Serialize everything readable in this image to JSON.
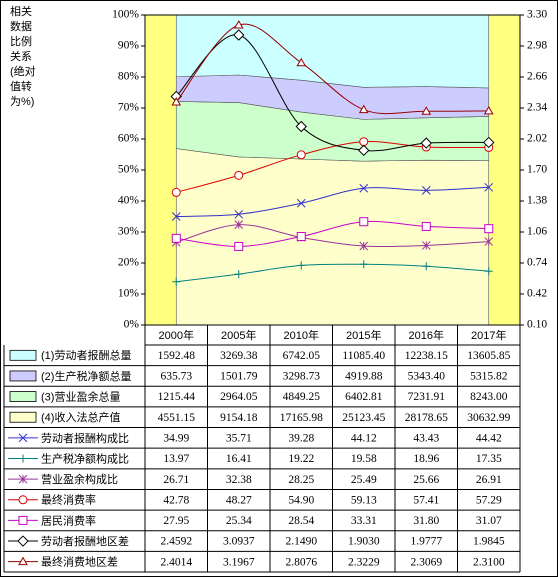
{
  "chart_data": {
    "type": "combo",
    "y_label_lines": [
      "相关",
      "数据",
      "比例",
      "关系",
      "(绝对",
      "值转",
      "为%)"
    ],
    "categories": [
      "2000年",
      "2005年",
      "2010年",
      "2015年",
      "2016年",
      "2017年"
    ],
    "ylim": [
      0,
      100
    ],
    "yticks": [
      {
        "value": 0,
        "label": "0%"
      },
      {
        "value": 10,
        "label": "10%"
      },
      {
        "value": 20,
        "label": "20%"
      },
      {
        "value": 30,
        "label": "30%"
      },
      {
        "value": 40,
        "label": "40%"
      },
      {
        "value": 50,
        "label": "50%"
      },
      {
        "value": 60,
        "label": "60%"
      },
      {
        "value": 70,
        "label": "70%"
      },
      {
        "value": 80,
        "label": "80%"
      },
      {
        "value": 90,
        "label": "90%"
      },
      {
        "value": 100,
        "label": "100%"
      }
    ],
    "y2lim": [
      0.1,
      3.3
    ],
    "y2ticks": [
      {
        "value": 0.1,
        "label": "0.10"
      },
      0.42,
      0.74,
      1.06,
      1.38,
      {
        "value": 1.7,
        "label": "1.70"
      },
      2.02,
      2.34,
      2.66,
      2.98,
      {
        "value": 3.3,
        "label": "3.30"
      }
    ],
    "area_stacking": "percent",
    "plot_background": "#ffff80",
    "series": [
      {
        "name": "(1)劳动者报酬总量",
        "type": "area",
        "color": "#ccffff",
        "values": [
          1592.48,
          3269.38,
          6742.05,
          11085.4,
          12238.15,
          13605.85
        ],
        "value_labels": [
          "1592.48",
          "3269.38",
          "6742.05",
          "11085.40",
          "12238.15",
          "13605.85"
        ]
      },
      {
        "name": "(2)生产税净额总量",
        "type": "area",
        "color": "#ccccff",
        "values": [
          635.73,
          1501.79,
          3298.73,
          4919.88,
          5343.4,
          5315.82
        ],
        "value_labels": [
          "635.73",
          "1501.79",
          "3298.73",
          "4919.88",
          "5343.40",
          "5315.82"
        ]
      },
      {
        "name": "(3)营业盈余总量",
        "type": "area",
        "color": "#ccffcc",
        "values": [
          1215.44,
          2964.05,
          4849.25,
          6402.81,
          7231.91,
          8243
        ],
        "value_labels": [
          "1215.44",
          "2964.05",
          "4849.25",
          "6402.81",
          "7231.91",
          "8243.00"
        ]
      },
      {
        "name": "(4)收入法总产值",
        "type": "area",
        "color": "#ffffcc",
        "values": [
          4551.15,
          9154.18,
          17165.98,
          25123.45,
          28178.65,
          30632.99
        ],
        "value_labels": [
          "4551.15",
          "9154.18",
          "17165.98",
          "25123.45",
          "28178.65",
          "30632.99"
        ]
      },
      {
        "name": "劳动者报酬构成比",
        "type": "line",
        "marker": "x",
        "color": "#3333cc",
        "values": [
          34.99,
          35.71,
          39.28,
          44.12,
          43.43,
          44.42
        ],
        "value_labels": [
          "34.99",
          "35.71",
          "39.28",
          "44.12",
          "43.43",
          "44.42"
        ]
      },
      {
        "name": "生产税净额构成比",
        "type": "line",
        "marker": "plus",
        "color": "#008080",
        "values": [
          13.97,
          16.41,
          19.22,
          19.58,
          18.96,
          17.35
        ],
        "value_labels": [
          "13.97",
          "16.41",
          "19.22",
          "19.58",
          "18.96",
          "17.35"
        ]
      },
      {
        "name": "营业盈余构成比",
        "type": "line",
        "marker": "star",
        "color": "#993399",
        "values": [
          26.71,
          32.38,
          28.25,
          25.49,
          25.66,
          26.91
        ],
        "value_labels": [
          "26.71",
          "32.38",
          "28.25",
          "25.49",
          "25.66",
          "26.91"
        ]
      },
      {
        "name": "最终消费率",
        "type": "line",
        "marker": "circle",
        "color": "#dd0000",
        "values": [
          42.78,
          48.27,
          54.9,
          59.13,
          57.41,
          57.29
        ],
        "value_labels": [
          "42.78",
          "48.27",
          "54.90",
          "59.13",
          "57.41",
          "57.29"
        ]
      },
      {
        "name": "居民消费率",
        "type": "line",
        "marker": "square",
        "color": "#cc00cc",
        "values": [
          27.95,
          25.34,
          28.54,
          33.31,
          31.8,
          31.07
        ],
        "value_labels": [
          "27.95",
          "25.34",
          "28.54",
          "33.31",
          "31.80",
          "31.07"
        ]
      },
      {
        "name": "劳动者报酬地区差",
        "type": "line",
        "marker": "diamond",
        "axis": "y2",
        "color": "#000000",
        "values": [
          2.4592,
          3.0937,
          2.149,
          1.903,
          1.9777,
          1.9845
        ],
        "value_labels": [
          "2.4592",
          "3.0937",
          "2.1490",
          "1.9030",
          "1.9777",
          "1.9845"
        ]
      },
      {
        "name": "最终消费地区差",
        "type": "line",
        "marker": "triangle",
        "axis": "y2",
        "color": "#990000",
        "values": [
          2.4014,
          3.1967,
          2.8076,
          2.3229,
          2.3069,
          2.31
        ],
        "value_labels": [
          "2.4014",
          "3.1967",
          "2.8076",
          "2.3229",
          "2.3069",
          "2.3100"
        ]
      }
    ]
  }
}
